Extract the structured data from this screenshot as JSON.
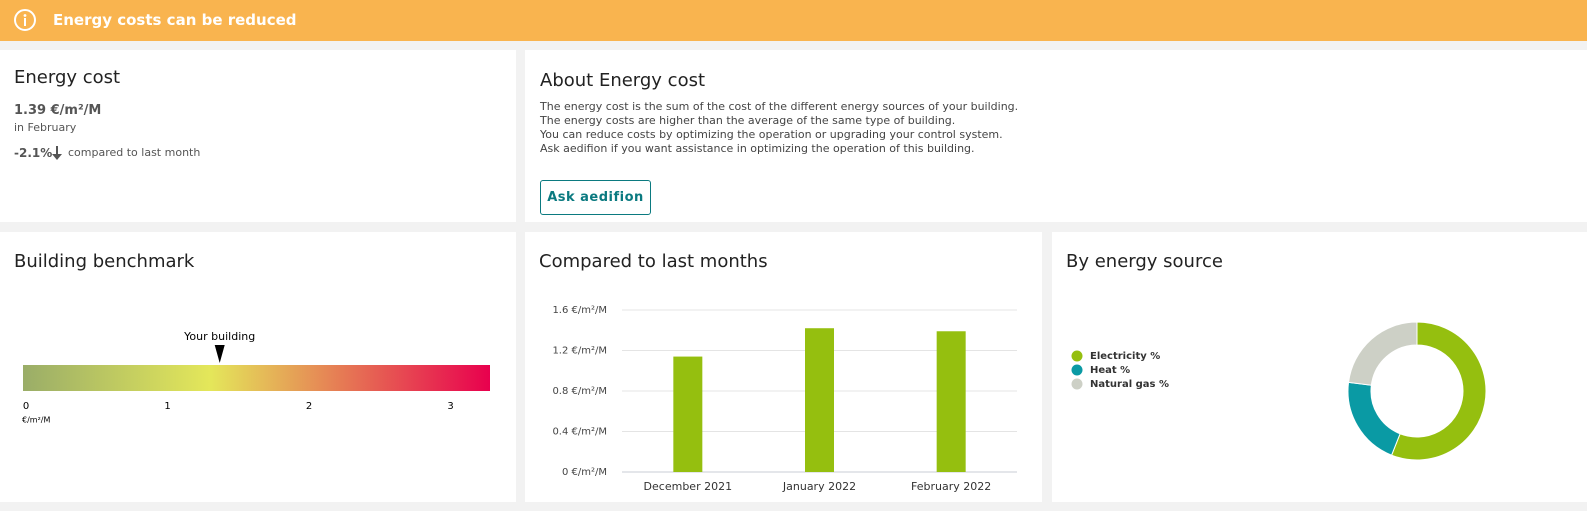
{
  "banner": {
    "text": "Energy costs can be reduced"
  },
  "energy_cost": {
    "title": "Energy cost",
    "value": "1.39 €/m²/M",
    "period": "in February",
    "change": "-2.1%",
    "change_note": "compared to last month"
  },
  "about": {
    "title": "About Energy cost",
    "lines": [
      "The energy cost is the sum of the cost of the different energy sources of your building.",
      "The energy costs are higher than the average of the same type of building.",
      "You can reduce costs by optimizing the operation or upgrading your control system.",
      "Ask aedifion if you want assistance in optimizing the operation of this building."
    ],
    "button": "Ask aedifion"
  },
  "chart_data": [
    {
      "type": "gauge",
      "title": "Building benchmark",
      "marker_label": "Your building",
      "value": 1.39,
      "xlim": [
        0,
        3.3
      ],
      "xticks": [
        0,
        1,
        2,
        3
      ],
      "unit": "€/m²/M",
      "colors": [
        "#9aad68",
        "#e4e75a",
        "#e8004e"
      ]
    },
    {
      "type": "bar",
      "title": "Compared to last months",
      "categories": [
        "December 2021",
        "January 2022",
        "February 2022"
      ],
      "values": [
        1.14,
        1.42,
        1.39
      ],
      "color": "#95bf0f",
      "ylim": [
        0,
        1.6
      ],
      "yticks": [
        {
          "value": 0,
          "label": "0 €/m²/M"
        },
        {
          "value": 0.4,
          "label": "0.4 €/m²/M"
        },
        {
          "value": 0.8,
          "label": "0.8 €/m²/M"
        },
        {
          "value": 1.2,
          "label": "1.2 €/m²/M"
        },
        {
          "value": 1.6,
          "label": "1.6 €/m²/M"
        }
      ],
      "grid": true
    },
    {
      "type": "pie",
      "title": "By energy source",
      "categories": [
        "Electricity %",
        "Heat %",
        "Natural gas %"
      ],
      "values": [
        56,
        21,
        23
      ],
      "colors": [
        "#95bf0f",
        "#0a9aa4",
        "#cdd0c6"
      ],
      "legend": "left"
    }
  ]
}
